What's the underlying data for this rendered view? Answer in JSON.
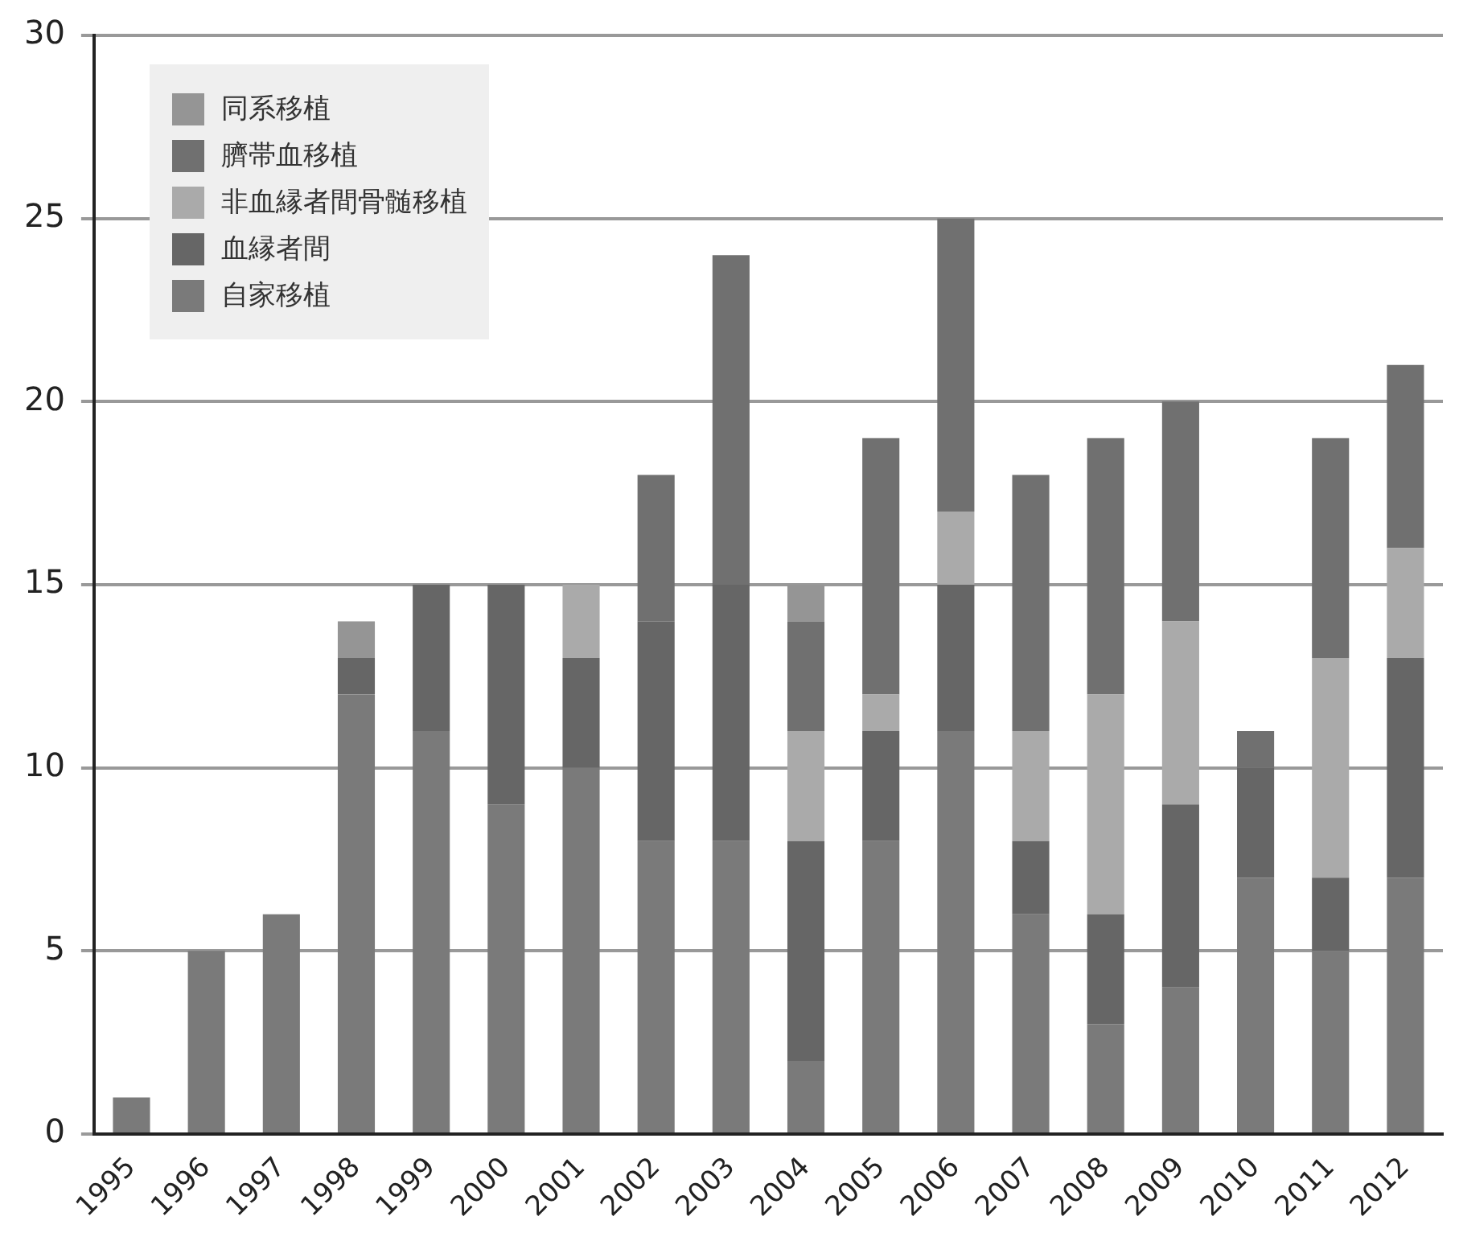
{
  "chart_data": {
    "type": "bar",
    "stacked": true,
    "categories": [
      "1995",
      "1996",
      "1997",
      "1998",
      "1999",
      "2000",
      "2001",
      "2002",
      "2003",
      "2004",
      "2005",
      "2006",
      "2007",
      "2008",
      "2009",
      "2010",
      "2011",
      "2012"
    ],
    "series": [
      {
        "name": "自家移植",
        "color": "#7a7a7a",
        "values": [
          1,
          5,
          6,
          12,
          11,
          9,
          10,
          8,
          8,
          2,
          8,
          11,
          6,
          3,
          4,
          7,
          5,
          7
        ]
      },
      {
        "name": "血縁者間",
        "color": "#666666",
        "values": [
          0,
          0,
          0,
          1,
          4,
          6,
          3,
          6,
          7,
          6,
          3,
          4,
          2,
          3,
          5,
          3,
          2,
          6
        ]
      },
      {
        "name": "非血縁者間骨髄移植",
        "color": "#aaaaaa",
        "values": [
          0,
          0,
          0,
          0,
          0,
          0,
          2,
          0,
          0,
          3,
          1,
          2,
          3,
          6,
          5,
          0,
          6,
          3
        ]
      },
      {
        "name": "臍帯血移植",
        "color": "#707070",
        "values": [
          0,
          0,
          0,
          0,
          0,
          0,
          0,
          4,
          9,
          3,
          7,
          8,
          7,
          7,
          6,
          1,
          6,
          5
        ]
      },
      {
        "name": "同系移植",
        "color": "#959595",
        "values": [
          0,
          0,
          0,
          1,
          0,
          0,
          0,
          0,
          0,
          1,
          0,
          0,
          0,
          0,
          0,
          0,
          0,
          0
        ]
      }
    ],
    "ylim": [
      0,
      30
    ],
    "yticks": [
      0,
      5,
      10,
      15,
      20,
      25,
      30
    ],
    "grid": "y",
    "legend": "top left"
  }
}
